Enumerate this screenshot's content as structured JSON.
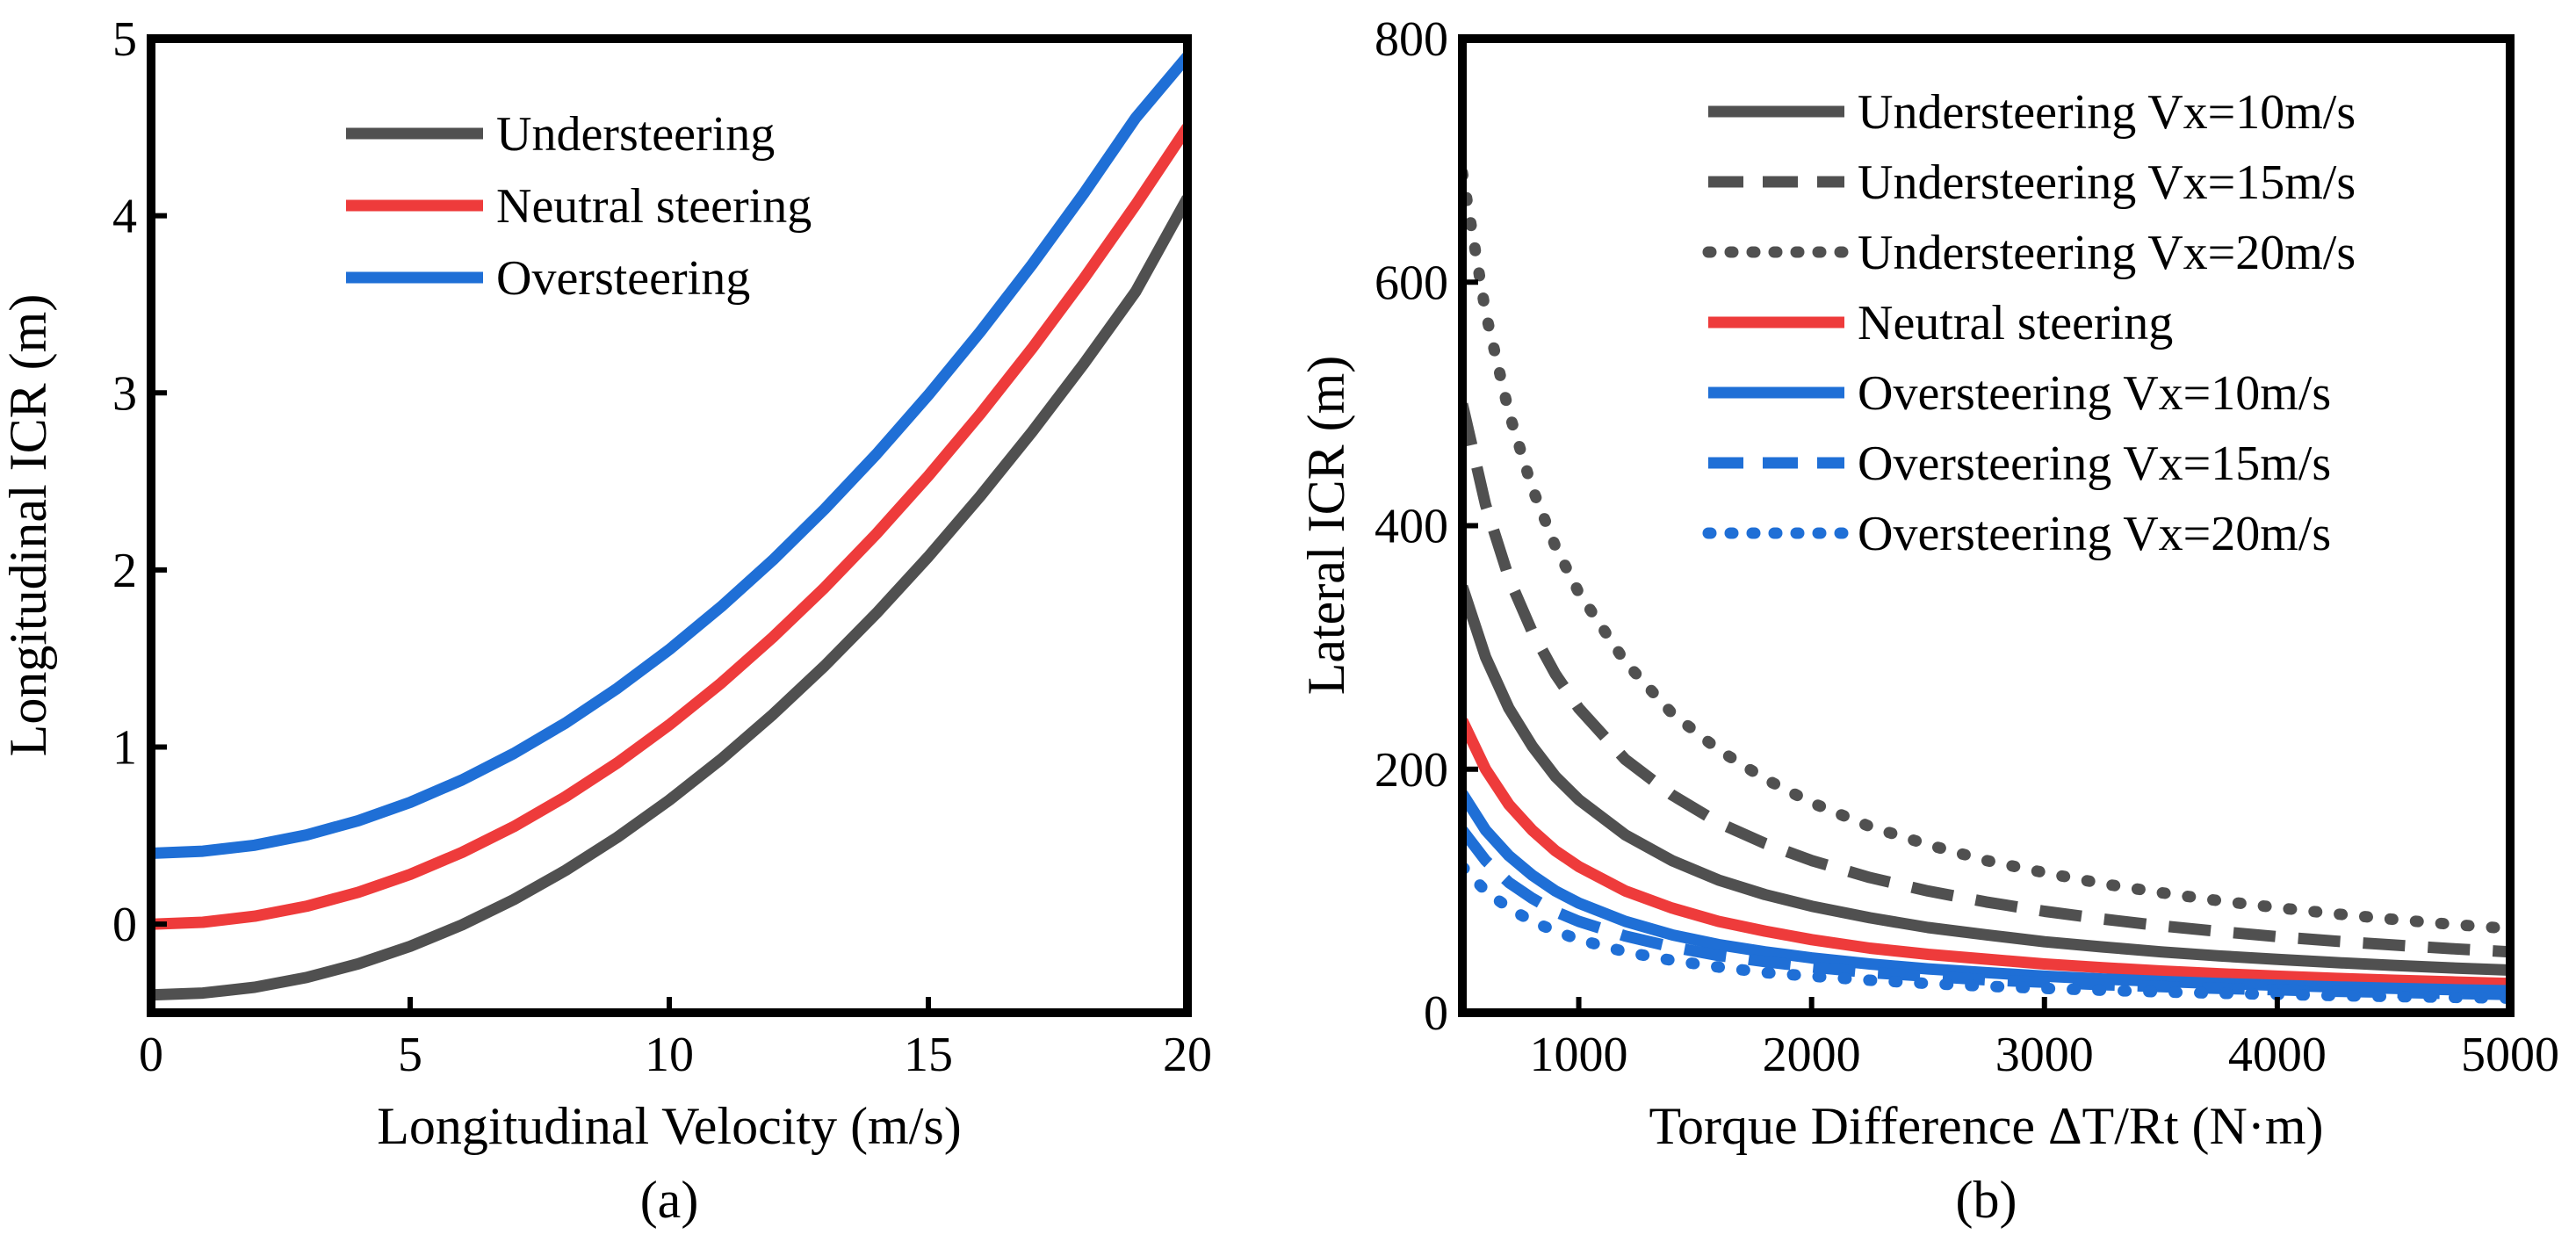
{
  "chart_data": [
    {
      "type": "line",
      "panel_label": "(a)",
      "xlabel": "Longitudinal Velocity (m/s)",
      "ylabel": "Longitudinal  ICR (m)",
      "xlim": [
        0,
        20
      ],
      "ylim": [
        -0.5,
        5
      ],
      "xticks": [
        0,
        5,
        10,
        15,
        20
      ],
      "yticks": [
        0,
        1,
        2,
        3,
        4,
        5
      ],
      "grid": false,
      "legend": "top-left",
      "x": [
        0,
        1,
        2,
        3,
        4,
        5,
        6,
        7,
        8,
        9,
        10,
        11,
        12,
        13,
        14,
        15,
        16,
        17,
        18,
        19,
        20
      ],
      "series": [
        {
          "name": "Understeering",
          "color": "#505050",
          "dash": "solid",
          "values": [
            -0.4,
            -0.389,
            -0.356,
            -0.301,
            -0.224,
            -0.125,
            -0.004,
            0.139,
            0.304,
            0.491,
            0.7,
            0.931,
            1.184,
            1.459,
            1.756,
            2.075,
            2.416,
            2.779,
            3.164,
            3.571,
            4.1
          ]
        },
        {
          "name": "Neutral steering",
          "color": "#ee3b3b",
          "dash": "solid",
          "values": [
            0,
            0.011,
            0.045,
            0.101,
            0.18,
            0.281,
            0.405,
            0.551,
            0.72,
            0.911,
            1.125,
            1.361,
            1.62,
            1.901,
            2.205,
            2.531,
            2.88,
            3.251,
            3.645,
            4.061,
            4.5
          ]
        },
        {
          "name": "Oversteering",
          "color": "#1f6fd6",
          "dash": "solid",
          "values": [
            0.4,
            0.412,
            0.446,
            0.504,
            0.584,
            0.688,
            0.814,
            0.964,
            1.136,
            1.332,
            1.55,
            1.792,
            2.056,
            2.344,
            2.654,
            2.988,
            3.344,
            3.724,
            4.126,
            4.552,
            4.9
          ]
        }
      ]
    },
    {
      "type": "line",
      "panel_label": "(b)",
      "xlabel": "Torque Difference ΔT/Rt    (N·m)",
      "ylabel": "Lateral  ICR (m)",
      "xlim": [
        500,
        5000
      ],
      "ylim": [
        0,
        800
      ],
      "xticks": [
        1000,
        2000,
        3000,
        4000,
        5000
      ],
      "yticks": [
        0,
        200,
        400,
        600,
        800
      ],
      "grid": false,
      "legend": "top-right",
      "x": [
        500,
        600,
        700,
        800,
        900,
        1000,
        1200,
        1400,
        1600,
        1800,
        2000,
        2250,
        2500,
        2750,
        3000,
        3250,
        3500,
        3750,
        4000,
        4250,
        4500,
        4750,
        5000
      ],
      "series": [
        {
          "name": "Understeering Vx=10m/s",
          "color": "#505050",
          "dash": "solid",
          "values": [
            350,
            292,
            250,
            219,
            194,
            175,
            146,
            125,
            109,
            97,
            87.5,
            78,
            70,
            64,
            58.3,
            54,
            50,
            46.7,
            43.8,
            41.2,
            38.9,
            36.8,
            35
          ]
        },
        {
          "name": "Understeering Vx=15m/s",
          "color": "#505050",
          "dash": "dashed",
          "values": [
            500,
            417,
            357,
            313,
            278,
            250,
            208,
            179,
            156,
            139,
            125,
            111,
            100,
            91,
            83.3,
            77,
            71.4,
            66.7,
            62.5,
            58.8,
            55.6,
            52.6,
            50
          ]
        },
        {
          "name": "Understeering Vx=20m/s",
          "color": "#505050",
          "dash": "dotted",
          "values": [
            690,
            575,
            493,
            431,
            383,
            345,
            288,
            246,
            216,
            192,
            172.5,
            153,
            138,
            125,
            115,
            106,
            98.6,
            92,
            86.3,
            81.2,
            76.7,
            72.6,
            69
          ]
        },
        {
          "name": "Neutral steering",
          "color": "#ee3b3b",
          "dash": "solid",
          "values": [
            240,
            200,
            171,
            150,
            133,
            120,
            100,
            86,
            75,
            67,
            60,
            53,
            48,
            44,
            40,
            37,
            34.3,
            32,
            30,
            28.2,
            26.7,
            25.3,
            24
          ]
        },
        {
          "name": "Oversteering   Vx=10m/s",
          "color": "#1f6fd6",
          "dash": "solid",
          "values": [
            180,
            150,
            129,
            113,
            100,
            90,
            75,
            64,
            56,
            50,
            45,
            40,
            36,
            33,
            30,
            27.7,
            25.7,
            24,
            22.5,
            21.2,
            20,
            18.9,
            18
          ]
        },
        {
          "name": "Oversteering   Vx=15m/s",
          "color": "#1f6fd6",
          "dash": "dashed",
          "values": [
            150,
            125,
            107,
            94,
            83,
            75,
            63,
            54,
            47,
            42,
            37.5,
            33,
            30,
            27,
            25,
            23,
            21.4,
            20,
            18.8,
            17.6,
            16.7,
            15.8,
            15
          ]
        },
        {
          "name": "Oversteering   Vx=20m/s",
          "color": "#1f6fd6",
          "dash": "dotted",
          "values": [
            120,
            100,
            86,
            75,
            67,
            60,
            50,
            43,
            37.5,
            33,
            30,
            26.7,
            24,
            21.8,
            20,
            18.5,
            17.1,
            16,
            15,
            14.1,
            13.3,
            12.6,
            12
          ]
        }
      ]
    }
  ]
}
